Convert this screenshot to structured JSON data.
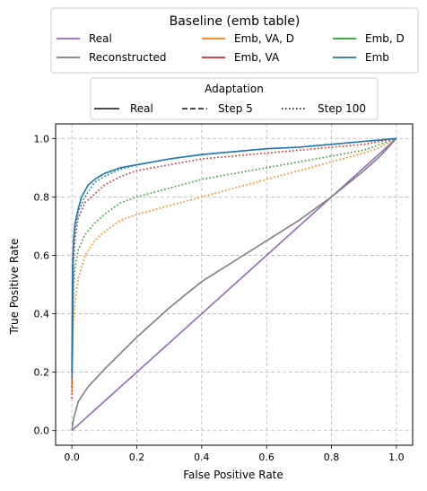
{
  "chart_data": {
    "type": "line",
    "xlabel": "False Positive Rate",
    "ylabel": "True Positive Rate",
    "xlim": [
      -0.05,
      1.05
    ],
    "ylim": [
      -0.05,
      1.05
    ],
    "xticks": [
      "0.0",
      "0.2",
      "0.4",
      "0.6",
      "0.8",
      "1.0"
    ],
    "yticks": [
      "0.0",
      "0.2",
      "0.4",
      "0.6",
      "0.8",
      "1.0"
    ],
    "grid": true,
    "legend_baseline": {
      "title": "Baseline (emb table)",
      "placement": "top-center, above plot",
      "entries": [
        {
          "name": "Real",
          "color": "#9467bd"
        },
        {
          "name": "Emb, VA, D",
          "color": "#ff7f0e"
        },
        {
          "name": "Emb, D",
          "color": "#2ca02c"
        },
        {
          "name": "Reconstructed",
          "color": "#7f7f7f"
        },
        {
          "name": "Emb, VA",
          "color": "#d62728"
        },
        {
          "name": "Emb",
          "color": "#1f77b4"
        }
      ]
    },
    "legend_adaptation": {
      "title": "Adaptation",
      "placement": "top-center, below baseline legend",
      "entries": [
        {
          "name": "Real",
          "dash": "solid"
        },
        {
          "name": "Step 5",
          "dash": "dashed"
        },
        {
          "name": "Step 100",
          "dash": "dotted"
        }
      ]
    },
    "series": [
      {
        "name": "Real",
        "color": "#9467bd",
        "dash": "solid",
        "x": [
          0,
          1
        ],
        "y": [
          0,
          1
        ]
      },
      {
        "name": "Reconstructed",
        "color": "#7f7f7f",
        "dash": "solid",
        "x": [
          0,
          0.005,
          0.02,
          0.05,
          0.1,
          0.2,
          0.3,
          0.4,
          0.5,
          0.6,
          0.7,
          0.8,
          0.9,
          0.95,
          1.0
        ],
        "y": [
          0,
          0.04,
          0.1,
          0.15,
          0.21,
          0.32,
          0.42,
          0.51,
          0.58,
          0.65,
          0.72,
          0.8,
          0.89,
          0.94,
          1.0
        ]
      },
      {
        "name": "Emb, VA, D",
        "color": "#ff7f0e",
        "dash": "dotted",
        "x": [
          0,
          0.005,
          0.01,
          0.02,
          0.04,
          0.07,
          0.1,
          0.15,
          0.2,
          0.3,
          0.4,
          0.5,
          0.6,
          0.7,
          0.8,
          0.9,
          0.95,
          1.0
        ],
        "y": [
          0.13,
          0.38,
          0.45,
          0.52,
          0.6,
          0.65,
          0.68,
          0.72,
          0.74,
          0.77,
          0.8,
          0.83,
          0.86,
          0.89,
          0.92,
          0.95,
          0.97,
          1.0
        ]
      },
      {
        "name": "Emb, D",
        "color": "#2ca02c",
        "dash": "dotted",
        "x": [
          0,
          0.005,
          0.01,
          0.02,
          0.04,
          0.07,
          0.1,
          0.15,
          0.2,
          0.3,
          0.4,
          0.5,
          0.6,
          0.7,
          0.8,
          0.9,
          0.95,
          1.0
        ],
        "y": [
          0.15,
          0.5,
          0.56,
          0.62,
          0.67,
          0.71,
          0.74,
          0.78,
          0.8,
          0.83,
          0.86,
          0.88,
          0.9,
          0.92,
          0.94,
          0.96,
          0.98,
          1.0
        ]
      },
      {
        "name": "Emb, VA",
        "color": "#d62728",
        "dash": "dotted",
        "x": [
          0,
          0.005,
          0.01,
          0.02,
          0.04,
          0.07,
          0.1,
          0.15,
          0.2,
          0.3,
          0.4,
          0.5,
          0.6,
          0.7,
          0.8,
          0.9,
          0.95,
          1.0
        ],
        "y": [
          0.11,
          0.58,
          0.66,
          0.73,
          0.78,
          0.81,
          0.84,
          0.87,
          0.89,
          0.91,
          0.93,
          0.94,
          0.95,
          0.96,
          0.97,
          0.98,
          0.99,
          1.0
        ]
      },
      {
        "name": "Emb",
        "color": "#1f77b4",
        "dash": "solid",
        "x": [
          0,
          0.002,
          0.005,
          0.01,
          0.02,
          0.03,
          0.05,
          0.07,
          0.1,
          0.15,
          0.2,
          0.3,
          0.4,
          0.5,
          0.6,
          0.7,
          0.8,
          0.9,
          0.95,
          1.0
        ],
        "y": [
          0.2,
          0.55,
          0.65,
          0.71,
          0.76,
          0.8,
          0.84,
          0.86,
          0.88,
          0.9,
          0.91,
          0.93,
          0.945,
          0.955,
          0.965,
          0.97,
          0.98,
          0.99,
          0.995,
          1.0
        ]
      },
      {
        "name": "Emb (Step 100)",
        "color": "#1f77b4",
        "dash": "dotted",
        "x": [
          0,
          0.005,
          0.01,
          0.02,
          0.04,
          0.07,
          0.1,
          0.15,
          0.2,
          0.3,
          0.4,
          0.5,
          0.6,
          0.7,
          0.8,
          0.9,
          0.95,
          1.0
        ],
        "y": [
          0.18,
          0.62,
          0.69,
          0.75,
          0.8,
          0.85,
          0.87,
          0.895,
          0.91,
          0.93,
          0.945,
          0.955,
          0.965,
          0.97,
          0.98,
          0.99,
          0.995,
          1.0
        ]
      }
    ]
  }
}
